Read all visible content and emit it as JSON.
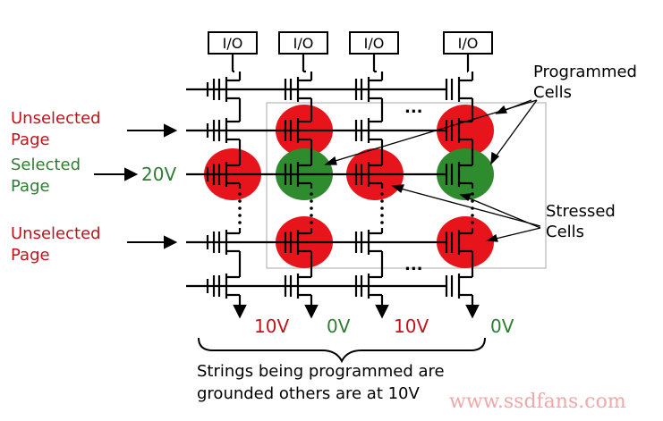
{
  "io_labels": [
    "I/O",
    "I/O",
    "I/O",
    "I/O"
  ],
  "left_labels": {
    "unselected_top": [
      "Unselected",
      "Page"
    ],
    "selected": [
      "Selected",
      "Page"
    ],
    "unselected_bottom": [
      "Unselected",
      "Page"
    ]
  },
  "gate_voltage": "20V",
  "right_labels": {
    "programmed": [
      "Programmed",
      "Cells"
    ],
    "stressed": [
      "Stressed",
      "Cells"
    ]
  },
  "bottom_voltages": [
    "10V",
    "0V",
    "10V",
    "0V"
  ],
  "ellipsis": "...",
  "caption": [
    "Strings being programmed are",
    "grounded others are at 10V"
  ],
  "watermark": "www.ssdfans.com",
  "colors": {
    "red": "#e8141c",
    "green": "#2e8b2e",
    "label_red": "#c0141c",
    "label_green": "#2e7d32",
    "line": "#000000",
    "watermark": "#f0a8a8"
  }
}
